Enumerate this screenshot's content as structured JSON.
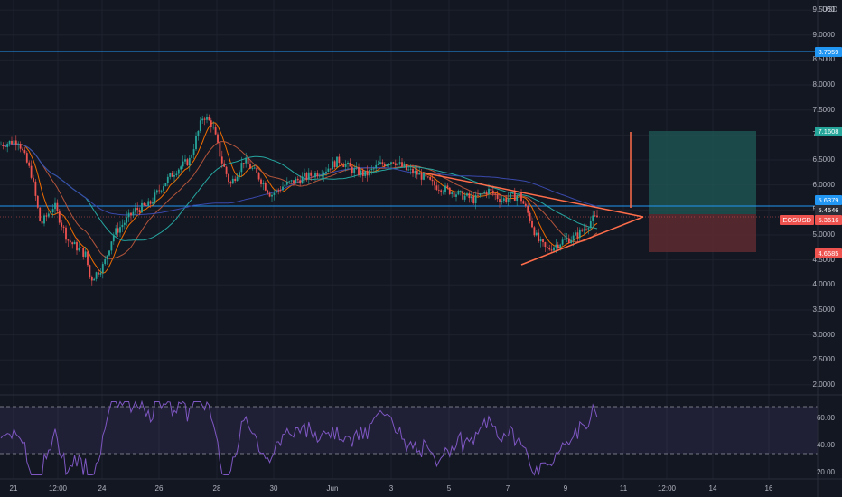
{
  "price_axis": {
    "currency": "USD",
    "ticks": [
      "9.5000",
      "9.0000",
      "8.5000",
      "8.0000",
      "7.5000",
      "7.0000",
      "6.5000",
      "6.0000",
      "5.5000",
      "5.0000",
      "4.5000",
      "4.0000",
      "3.5000",
      "3.0000",
      "2.5000",
      "2.0000"
    ]
  },
  "rsi_axis": {
    "ticks": [
      "60.00",
      "40.00",
      "20.00"
    ]
  },
  "time_axis": {
    "ticks": [
      "21",
      "12:00",
      "24",
      "26",
      "28",
      "30",
      "Jun",
      "3",
      "5",
      "7",
      "9",
      "11",
      "12:00",
      "14",
      "16"
    ]
  },
  "badges": {
    "level_top": "8.7959",
    "target": "7.1608",
    "level_mid": "5.6379",
    "entry": "5.4546",
    "current": "5.3616",
    "stop": "4.6685"
  },
  "symbol_label": "EOSUSD",
  "colors": {
    "background": "#131722",
    "up": "#26a69a",
    "down": "#ef5350",
    "level_line": "#2196f3",
    "triangle": "#ff6d4a",
    "rsi_line": "#7e57c2",
    "profit_zone": "#1f5a57",
    "loss_zone": "#5e2a30"
  },
  "chart_data": {
    "type": "candlestick",
    "symbol": "EOSUSD",
    "price_ylim": [
      1.8,
      9.7
    ],
    "rsi_ylim": [
      15,
      75
    ],
    "horizontal_levels": [
      8.7959,
      5.6379
    ],
    "position": {
      "target": 7.1608,
      "entry": 5.4546,
      "stop": 4.6685
    },
    "rsi_bands": [
      70,
      30
    ],
    "price_path": [
      [
        0,
        6.8
      ],
      [
        20,
        6.9
      ],
      [
        35,
        6.2
      ],
      [
        45,
        5.2
      ],
      [
        60,
        5.6
      ],
      [
        75,
        4.9
      ],
      [
        95,
        4.6
      ],
      [
        100,
        4.1
      ],
      [
        115,
        4.4
      ],
      [
        125,
        5.0
      ],
      [
        140,
        5.3
      ],
      [
        150,
        5.5
      ],
      [
        165,
        5.6
      ],
      [
        180,
        6.0
      ],
      [
        195,
        6.3
      ],
      [
        210,
        6.5
      ],
      [
        225,
        7.4
      ],
      [
        235,
        7.2
      ],
      [
        245,
        6.5
      ],
      [
        255,
        6.0
      ],
      [
        270,
        6.5
      ],
      [
        285,
        6.2
      ],
      [
        300,
        5.8
      ],
      [
        315,
        6.0
      ],
      [
        330,
        6.1
      ],
      [
        345,
        6.2
      ],
      [
        360,
        6.3
      ],
      [
        375,
        6.5
      ],
      [
        390,
        6.3
      ],
      [
        405,
        6.2
      ],
      [
        420,
        6.4
      ],
      [
        435,
        6.5
      ],
      [
        450,
        6.3
      ],
      [
        465,
        6.2
      ],
      [
        480,
        6.0
      ],
      [
        495,
        5.9
      ],
      [
        510,
        5.8
      ],
      [
        525,
        5.7
      ],
      [
        540,
        5.9
      ],
      [
        555,
        5.7
      ],
      [
        575,
        5.8
      ],
      [
        585,
        5.4
      ],
      [
        595,
        4.9
      ],
      [
        605,
        4.7
      ],
      [
        615,
        4.8
      ],
      [
        625,
        4.9
      ],
      [
        635,
        4.95
      ],
      [
        645,
        5.1
      ],
      [
        655,
        5.3
      ],
      [
        662,
        5.36
      ]
    ]
  }
}
